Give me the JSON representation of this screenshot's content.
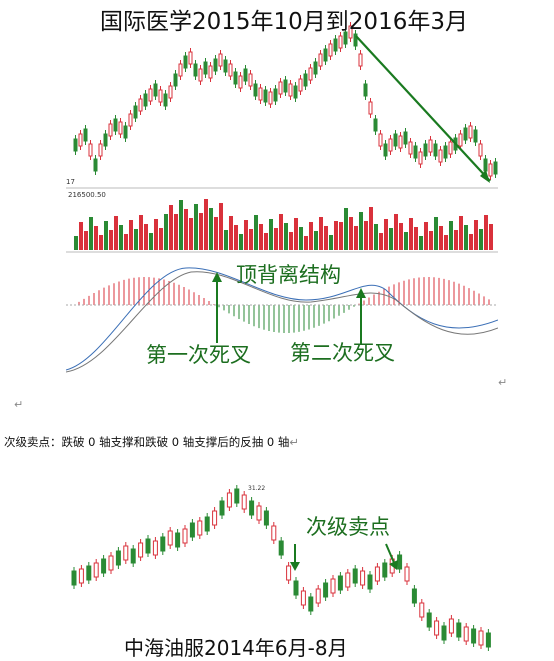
{
  "document": {
    "chart1_title": "国际医学2015年10月到2016年3月",
    "chart1_annotations": {
      "top_divergence": "顶背离结构",
      "first_dead_cross": "第一次死叉",
      "second_dead_cross": "第二次死叉"
    },
    "chart1_small_labels": {
      "price_left": "17",
      "volume_top": "216500.50"
    },
    "paragraph": "次级卖点：跌破 0 轴支撑和跌破 0 轴支撑后的反抽 0 轴",
    "chart2_title": "中海油服2014年6月-8月",
    "chart2_annotation": "次级卖点",
    "chart2_peak_label": "31.22",
    "return_mark": "↵"
  },
  "colors": {
    "up_candle": "#d9313b",
    "down_candle": "#2a8a34",
    "arrow_green": "#1a7a20",
    "annotation_green": "#1c6e1f"
  }
}
